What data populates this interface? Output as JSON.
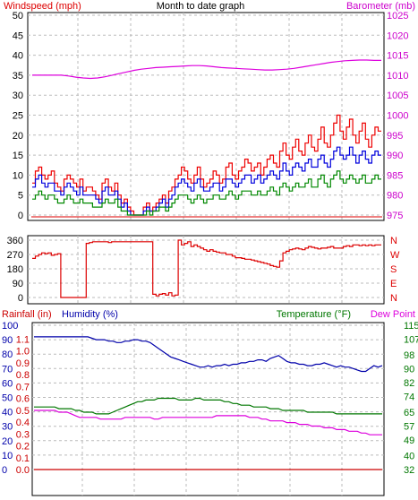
{
  "title": "Month to date graph",
  "colors": {
    "wind": "#ee0000",
    "gust": "#ee0000",
    "avgwind": "#0000dd",
    "windlow": "#008800",
    "barometer": "#dd00dd",
    "direction": "#dd0000",
    "rainfall": "#cc0000",
    "humidity": "#0000aa",
    "temperature": "#007700",
    "dewpoint": "#dd00dd",
    "grid": "#bbbbbb"
  },
  "chart_data": [
    {
      "type": "line",
      "title": "Month to date graph",
      "left_label": "Windspeed (mph)",
      "right_label": "Barometer (mb)",
      "left_ticks": [
        "0",
        "5",
        "10",
        "15",
        "20",
        "25",
        "30",
        "35",
        "40",
        "45",
        "50"
      ],
      "right_ticks": [
        "975",
        "980",
        "985",
        "990",
        "995",
        "1000",
        "1005",
        "1010",
        "1015",
        "1020",
        "1025"
      ],
      "left_range": [
        0,
        50
      ],
      "right_range": [
        975,
        1025
      ],
      "grid": true,
      "series": [
        {
          "axis": "right",
          "color_key": "barometer",
          "values": [
            1010,
            1010,
            1010,
            1010,
            1010,
            1009.8,
            1009.5,
            1009.3,
            1009.2,
            1009.3,
            1009.6,
            1010,
            1010.4,
            1010.8,
            1011.2,
            1011.5,
            1011.7,
            1011.9,
            1012,
            1012.1,
            1012.2,
            1012.3,
            1012.4,
            1012.4,
            1012.3,
            1012.1,
            1011.9,
            1011.8,
            1011.7,
            1011.6,
            1011.5,
            1011.4,
            1011.3,
            1011.3,
            1011.4,
            1011.5,
            1011.7,
            1012,
            1012.3,
            1012.6,
            1012.9,
            1013.2,
            1013.4,
            1013.6,
            1013.7,
            1013.8,
            1013.8,
            1013.7,
            1013.7
          ]
        },
        {
          "axis": "left",
          "color_key": "gust",
          "values": [
            8,
            11,
            12,
            10,
            9,
            10,
            11,
            8,
            7,
            6,
            9,
            10,
            9,
            8,
            7,
            9,
            6,
            7,
            7,
            6,
            5,
            4,
            8,
            9,
            7,
            6,
            8,
            5,
            3,
            4,
            2,
            1,
            0,
            0,
            0,
            2,
            3,
            1,
            2,
            3,
            4,
            5,
            3,
            6,
            7,
            9,
            10,
            12,
            11,
            9,
            8,
            10,
            12,
            9,
            7,
            8,
            9,
            11,
            10,
            8,
            9,
            12,
            13,
            10,
            9,
            11,
            12,
            14,
            13,
            11,
            12,
            13,
            10,
            12,
            14,
            15,
            13,
            12,
            16,
            18,
            15,
            14,
            17,
            19,
            16,
            15,
            18,
            20,
            17,
            16,
            19,
            22,
            18,
            17,
            20,
            23,
            25,
            21,
            19,
            22,
            24,
            20,
            18,
            21,
            23,
            19,
            17,
            20,
            22,
            21
          ]
        },
        {
          "axis": "left",
          "color_key": "avgwind",
          "values": [
            7,
            9,
            10,
            8,
            7,
            8,
            8,
            6,
            6,
            5,
            7,
            8,
            7,
            6,
            5,
            7,
            5,
            5,
            5,
            5,
            4,
            3,
            6,
            7,
            5,
            5,
            6,
            4,
            2,
            3,
            1,
            0,
            0,
            0,
            0,
            1,
            2,
            1,
            1,
            2,
            3,
            4,
            2,
            4,
            5,
            7,
            8,
            9,
            8,
            7,
            6,
            8,
            9,
            7,
            6,
            6,
            7,
            8,
            8,
            6,
            7,
            9,
            9,
            8,
            7,
            8,
            9,
            10,
            10,
            8,
            9,
            10,
            8,
            9,
            10,
            11,
            10,
            9,
            11,
            13,
            11,
            10,
            12,
            13,
            12,
            11,
            13,
            14,
            12,
            12,
            14,
            15,
            13,
            12,
            14,
            16,
            17,
            15,
            14,
            15,
            17,
            15,
            13,
            15,
            16,
            14,
            13,
            15,
            16,
            15
          ]
        },
        {
          "axis": "left",
          "color_key": "windlow",
          "values": [
            4,
            5,
            6,
            5,
            4,
            5,
            5,
            4,
            3,
            3,
            4,
            5,
            4,
            3,
            3,
            4,
            3,
            3,
            3,
            2,
            2,
            2,
            3,
            4,
            3,
            3,
            4,
            2,
            1,
            1,
            0,
            0,
            0,
            0,
            0,
            0,
            1,
            0,
            1,
            1,
            2,
            2,
            1,
            2,
            3,
            4,
            5,
            5,
            5,
            4,
            3,
            4,
            5,
            4,
            3,
            4,
            4,
            5,
            5,
            4,
            4,
            5,
            6,
            5,
            4,
            5,
            6,
            6,
            6,
            5,
            5,
            6,
            5,
            5,
            6,
            7,
            6,
            5,
            7,
            8,
            7,
            6,
            7,
            8,
            7,
            7,
            8,
            9,
            7,
            7,
            9,
            10,
            8,
            7,
            9,
            10,
            11,
            9,
            8,
            9,
            10,
            9,
            8,
            9,
            10,
            8,
            8,
            9,
            10,
            9
          ]
        }
      ]
    },
    {
      "type": "line",
      "left_label": "",
      "right_label": "",
      "left_ticks": [
        "0",
        "90",
        "180",
        "270",
        "360"
      ],
      "right_ticks": [
        "N",
        "E",
        "S",
        "W",
        "N"
      ],
      "left_range": [
        0,
        360
      ],
      "grid": true,
      "series": [
        {
          "axis": "left",
          "color_key": "direction",
          "values": [
            245,
            260,
            270,
            280,
            275,
            280,
            265,
            270,
            275,
            0,
            0,
            0,
            0,
            0,
            0,
            0,
            0,
            340,
            345,
            350,
            350,
            350,
            350,
            350,
            345,
            350,
            350,
            350,
            350,
            350,
            350,
            350,
            350,
            350,
            350,
            350,
            350,
            350,
            20,
            10,
            20,
            25,
            15,
            30,
            10,
            15,
            360,
            330,
            340,
            350,
            320,
            330,
            320,
            310,
            300,
            290,
            300,
            290,
            285,
            280,
            280,
            270,
            270,
            260,
            250,
            250,
            245,
            240,
            240,
            235,
            230,
            225,
            220,
            215,
            210,
            200,
            195,
            190,
            230,
            280,
            290,
            300,
            305,
            310,
            305,
            300,
            310,
            320,
            315,
            310,
            305,
            310,
            310,
            315,
            320,
            310,
            310,
            310,
            320,
            325,
            320,
            330,
            330,
            325,
            330,
            325,
            330,
            325,
            330,
            330
          ]
        }
      ]
    },
    {
      "type": "line",
      "left_label": "Rainfall (in)",
      "humidity_label": "Humidity (%)",
      "right_label": "Temperature (°F)",
      "dewpoint_label": "Dew Point",
      "rain_ticks": [
        "0.0",
        "0.1",
        "0.2",
        "0.3",
        "0.4",
        "0.5",
        "0.6",
        "0.7",
        "0.8",
        "0.9",
        "1.0",
        "1.1"
      ],
      "humidity_ticks": [
        "0",
        "10",
        "20",
        "30",
        "40",
        "50",
        "60",
        "70",
        "80",
        "90",
        "100"
      ],
      "right_ticks": [
        "32",
        "40",
        "49",
        "57",
        "65",
        "74",
        "82",
        "90",
        "98",
        "107",
        "115"
      ],
      "left_range": [
        0,
        100
      ],
      "right_range": [
        32,
        115
      ],
      "grid": true,
      "series": [
        {
          "axis": "humidity",
          "color_key": "humidity",
          "values": [
            92,
            92,
            92,
            92,
            92,
            92,
            92,
            92,
            92,
            92,
            92,
            92,
            92,
            92,
            91,
            90,
            90,
            90,
            89,
            89,
            88,
            88,
            89,
            89,
            90,
            90,
            89,
            89,
            88,
            86,
            84,
            82,
            80,
            78,
            77,
            76,
            75,
            74,
            73,
            72,
            71,
            71,
            72,
            71,
            72,
            72,
            73,
            72,
            73,
            73,
            74,
            74,
            75,
            75,
            76,
            76,
            75,
            77,
            78,
            79,
            77,
            75,
            74,
            74,
            73,
            73,
            72,
            72,
            73,
            73,
            74,
            73,
            72,
            71,
            72,
            71,
            71,
            70,
            69,
            68,
            68,
            70,
            72,
            71,
            72
          ]
        },
        {
          "axis": "right",
          "color_key": "temperature",
          "values": [
            68,
            68,
            68,
            68,
            68,
            68,
            67,
            67,
            67,
            67,
            66,
            66,
            65,
            65,
            65,
            64,
            64,
            64,
            64,
            65,
            66,
            67,
            68,
            69,
            70,
            71,
            71,
            72,
            72,
            72,
            73,
            73,
            73,
            73,
            73,
            72,
            72,
            72,
            72,
            73,
            73,
            72,
            72,
            72,
            72,
            72,
            71,
            71,
            70,
            70,
            69,
            69,
            69,
            68,
            68,
            68,
            68,
            67,
            67,
            67,
            66,
            66,
            66,
            66,
            66,
            66,
            65,
            65,
            65,
            65,
            65,
            65,
            65,
            64,
            64,
            64,
            64,
            64,
            64,
            64,
            64,
            64,
            64,
            64,
            64
          ]
        },
        {
          "axis": "right",
          "color_key": "dewpoint",
          "values": [
            66,
            66,
            66,
            66,
            66,
            66,
            65,
            65,
            65,
            64,
            63,
            62,
            62,
            62,
            62,
            62,
            61,
            61,
            61,
            61,
            61,
            61,
            62,
            62,
            62,
            62,
            62,
            62,
            62,
            61,
            61,
            62,
            62,
            62,
            62,
            62,
            62,
            62,
            62,
            62,
            62,
            62,
            62,
            62,
            63,
            63,
            63,
            63,
            63,
            63,
            63,
            63,
            62,
            62,
            62,
            61,
            61,
            60,
            60,
            60,
            60,
            59,
            59,
            59,
            58,
            58,
            58,
            57,
            57,
            57,
            56,
            56,
            56,
            55,
            55,
            55,
            54,
            54,
            54,
            53,
            53,
            52,
            52,
            52,
            52
          ]
        },
        {
          "axis": "rain",
          "color_key": "rainfall",
          "values": [
            0,
            0,
            0,
            0,
            0,
            0,
            0,
            0,
            0,
            0,
            0,
            0,
            0,
            0,
            0,
            0,
            0,
            0,
            0,
            0,
            0,
            0,
            0,
            0,
            0,
            0,
            0,
            0,
            0,
            0,
            0,
            0,
            0,
            0,
            0,
            0,
            0,
            0,
            0,
            0,
            0,
            0,
            0,
            0,
            0,
            0,
            0,
            0,
            0,
            0,
            0,
            0,
            0,
            0,
            0,
            0,
            0,
            0,
            0,
            0,
            0,
            0,
            0,
            0,
            0,
            0,
            0,
            0,
            0,
            0,
            0,
            0,
            0,
            0,
            0,
            0,
            0,
            0,
            0,
            0,
            0,
            0,
            0,
            0,
            0
          ]
        }
      ]
    }
  ]
}
